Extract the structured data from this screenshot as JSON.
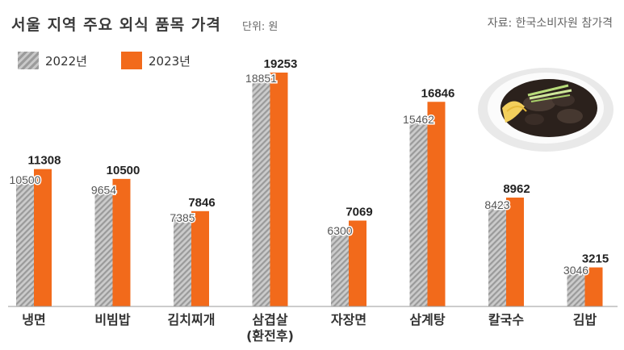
{
  "header": {
    "title": "서울 지역 주요 외식 품목 가격",
    "unit": "단위: 원",
    "source": "자료: 한국소비자원 참가격"
  },
  "colors": {
    "series_2022": "#aaaaaa",
    "series_2023": "#f26a1b"
  },
  "chart_data": {
    "type": "bar",
    "title": "서울 지역 주요 외식 품목 가격",
    "unit": "단위: 원",
    "categories": [
      "냉면",
      "비빔밥",
      "김치찌개",
      "삼겹살\n(환전후)",
      "자장면",
      "삼계탕",
      "칼국수",
      "김밥"
    ],
    "series": [
      {
        "name": "2022년",
        "values": [
          10500,
          9654,
          7385,
          18851,
          6300,
          15462,
          8423,
          3046
        ]
      },
      {
        "name": "2023년",
        "values": [
          11308,
          10500,
          7846,
          19253,
          7069,
          16846,
          8962,
          3215
        ]
      }
    ],
    "ylim": [
      0,
      19253
    ],
    "grid": false,
    "legend": "top-left"
  }
}
